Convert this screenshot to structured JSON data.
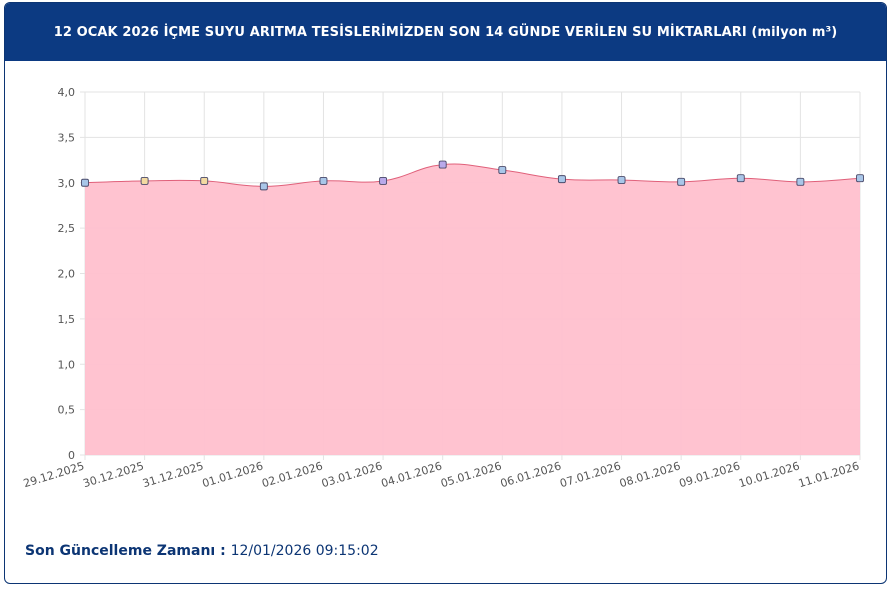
{
  "header": {
    "title": "12 OCAK 2026 İÇME SUYU ARITMA TESİSLERİMİZDEN SON 14 GÜNDE VERİLEN SU MİKTARLARI (milyon m³)"
  },
  "footer": {
    "label": "Son Güncelleme Zamanı",
    "separator": " : ",
    "value": "12/01/2026 09:15:02"
  },
  "chart_data": {
    "type": "area",
    "categories": [
      "29.12.2025",
      "30.12.2025",
      "31.12.2025",
      "01.01.2026",
      "02.01.2026",
      "03.01.2026",
      "04.01.2026",
      "05.01.2026",
      "06.01.2026",
      "07.01.2026",
      "08.01.2026",
      "09.01.2026",
      "10.01.2026",
      "11.01.2026"
    ],
    "values": [
      3.0,
      3.02,
      3.02,
      2.96,
      3.02,
      3.02,
      3.2,
      3.14,
      3.04,
      3.03,
      3.01,
      3.05,
      3.01,
      3.05
    ],
    "ylim": [
      0,
      4
    ],
    "yticks": [
      "0",
      "0,5",
      "1,0",
      "1,5",
      "2,0",
      "2,5",
      "3,0",
      "3,5",
      "4,0"
    ],
    "grid": true,
    "colors": {
      "fill": "#ffc0cd",
      "line": "#e0607a",
      "grid": "#e3e3e3",
      "axis_text": "#555555"
    },
    "point_colors": [
      "#a9c6e8",
      "#f3d9a1",
      "#f3d9a1",
      "#a9c6e8",
      "#a9c6e8",
      "#b9a9ea",
      "#b9a9ea",
      "#a9c6e8",
      "#a9c6e8",
      "#a9c6e8",
      "#a9c6e8",
      "#a9c6e8",
      "#a9c6e8",
      "#a9c6e8"
    ]
  }
}
